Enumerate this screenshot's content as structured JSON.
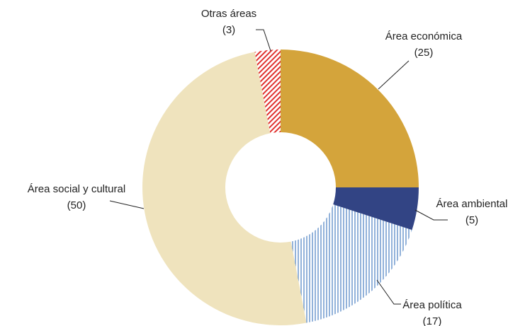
{
  "chart_data": {
    "type": "donut",
    "categories": [
      "Área económica",
      "Área ambiental",
      "Área política",
      "Área social y cultural",
      "Otras áreas"
    ],
    "values": [
      25,
      5,
      17,
      50,
      3
    ],
    "value_labels": [
      "(25)",
      "(5)",
      "(17)",
      "(50)",
      "(3)"
    ],
    "colors": [
      "#d4a43b",
      "#324484",
      "#4a7fc1",
      "#efe3bd",
      "#e0322f"
    ],
    "patterns": [
      "solid",
      "solid",
      "vertical-hatch",
      "solid",
      "diagonal-hatch"
    ]
  }
}
